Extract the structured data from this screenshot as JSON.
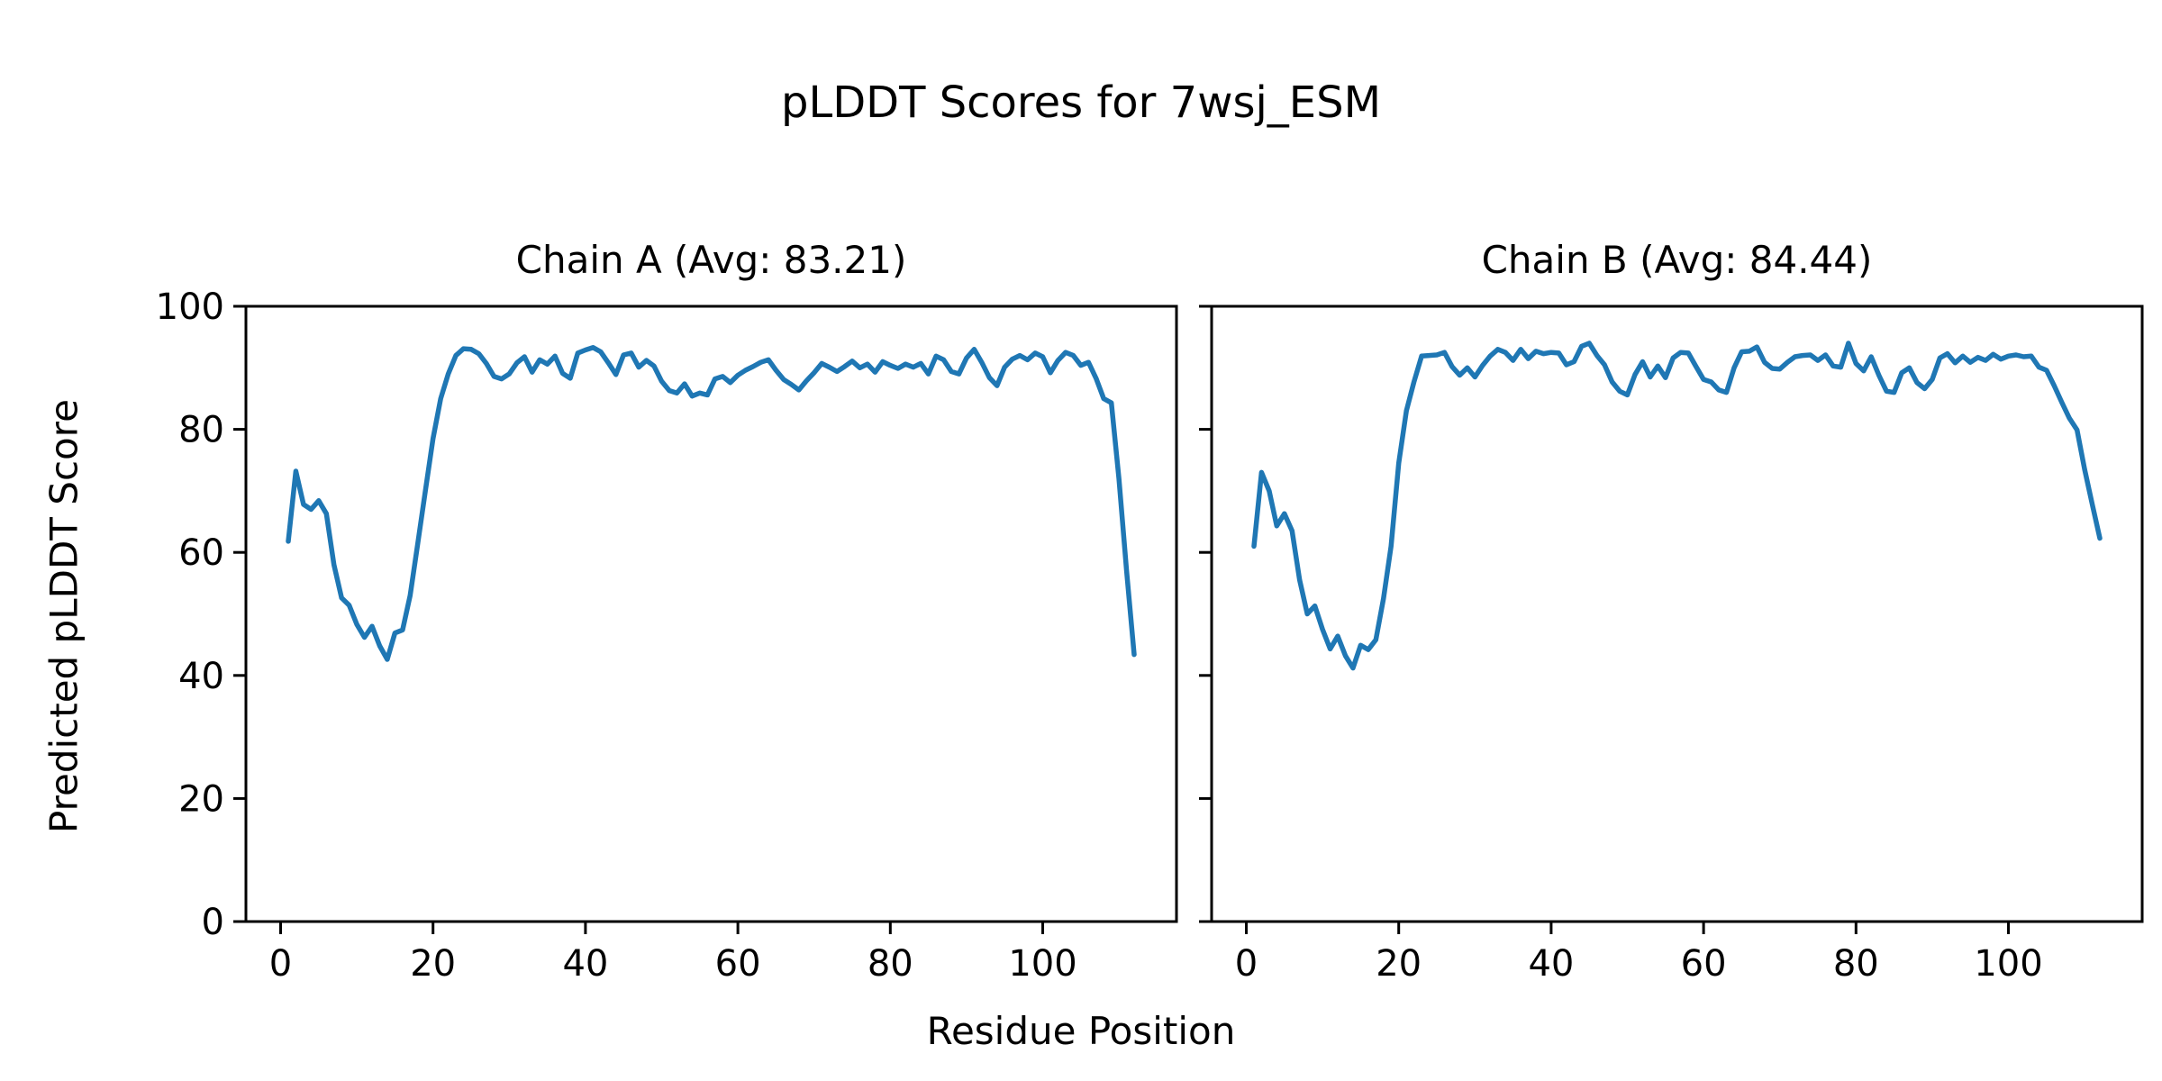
{
  "figure": {
    "title": "pLDDT Scores for 7wsj_ESM",
    "xlabel": "Residue Position",
    "ylabel": "Predicted pLDDT Score",
    "background_color": "#ffffff",
    "text_color": "#000000",
    "spine_color": "#000000",
    "line_color": "#1f77b4"
  },
  "chart_data": [
    {
      "type": "line",
      "title": "Chain A (Avg: 83.21)",
      "chain": "A",
      "average_plddt": 83.21,
      "x_start": 1,
      "xlim": [
        -4.55,
        117.55
      ],
      "ylim": [
        0,
        100
      ],
      "xticks": [
        0,
        20,
        40,
        60,
        80,
        100
      ],
      "yticks": [
        0,
        20,
        40,
        60,
        80,
        100
      ],
      "ytick_labels_visible": true,
      "grid": false,
      "legend": false,
      "values": [
        61.8,
        73.2,
        67.8,
        67.0,
        68.4,
        66.3,
        58.0,
        52.6,
        51.4,
        48.3,
        46.2,
        48.0,
        44.8,
        42.6,
        46.9,
        47.4,
        53.0,
        61.5,
        70.0,
        78.5,
        85.0,
        89.0,
        92.0,
        93.1,
        93.0,
        92.3,
        90.7,
        88.6,
        88.2,
        89.0,
        90.8,
        91.8,
        89.3,
        91.3,
        90.6,
        91.9,
        89.1,
        88.3,
        92.4,
        92.9,
        93.3,
        92.6,
        90.8,
        88.9,
        92.1,
        92.4,
        90.1,
        91.2,
        90.3,
        87.8,
        86.3,
        85.9,
        87.4,
        85.4,
        85.9,
        85.6,
        88.2,
        88.6,
        87.6,
        88.8,
        89.6,
        90.2,
        90.9,
        91.3,
        89.6,
        88.1,
        87.3,
        86.4,
        87.9,
        89.2,
        90.7,
        90.1,
        89.4,
        90.2,
        91.1,
        90.0,
        90.6,
        89.3,
        91.0,
        90.4,
        89.9,
        90.6,
        90.1,
        90.7,
        89.0,
        91.9,
        91.3,
        89.4,
        89.0,
        91.6,
        93.0,
        90.9,
        88.4,
        87.1,
        90.1,
        91.4,
        92.0,
        91.3,
        92.4,
        91.8,
        89.2,
        91.2,
        92.5,
        92.0,
        90.4,
        90.9,
        88.3,
        85.0,
        84.3,
        72.0,
        57.0,
        43.4
      ]
    },
    {
      "type": "line",
      "title": "Chain B (Avg: 84.44)",
      "chain": "B",
      "average_plddt": 84.44,
      "x_start": 1,
      "xlim": [
        -4.55,
        117.55
      ],
      "ylim": [
        0,
        100
      ],
      "xticks": [
        0,
        20,
        40,
        60,
        80,
        100
      ],
      "yticks": [
        0,
        20,
        40,
        60,
        80,
        100
      ],
      "ytick_labels_visible": false,
      "grid": false,
      "legend": false,
      "values": [
        61.0,
        73.0,
        70.0,
        64.3,
        66.3,
        63.5,
        55.5,
        50.0,
        51.3,
        47.5,
        44.3,
        46.4,
        43.2,
        41.2,
        44.9,
        44.2,
        45.8,
        52.5,
        61.0,
        74.5,
        83.0,
        87.7,
        91.9,
        92.0,
        92.1,
        92.5,
        90.2,
        88.8,
        90.0,
        88.5,
        90.4,
        91.9,
        93.0,
        92.5,
        91.2,
        93.0,
        91.5,
        92.7,
        92.3,
        92.5,
        92.4,
        90.5,
        91.0,
        93.5,
        94.0,
        92.0,
        90.5,
        87.7,
        86.2,
        85.6,
        88.9,
        91.0,
        88.5,
        90.3,
        88.4,
        91.6,
        92.5,
        92.4,
        90.2,
        88.1,
        87.7,
        86.4,
        86.0,
        90.0,
        92.6,
        92.7,
        93.4,
        90.9,
        89.9,
        89.8,
        90.9,
        91.8,
        92.0,
        92.1,
        91.2,
        92.1,
        90.3,
        90.1,
        94.0,
        90.7,
        89.5,
        91.8,
        88.8,
        86.2,
        86.0,
        89.2,
        90.0,
        87.6,
        86.6,
        88.1,
        91.6,
        92.3,
        90.8,
        91.9,
        90.9,
        91.7,
        91.2,
        92.2,
        91.4,
        91.9,
        92.1,
        91.8,
        91.9,
        90.1,
        89.6,
        87.1,
        84.4,
        81.8,
        79.9,
        73.5,
        67.8,
        62.3
      ]
    }
  ]
}
